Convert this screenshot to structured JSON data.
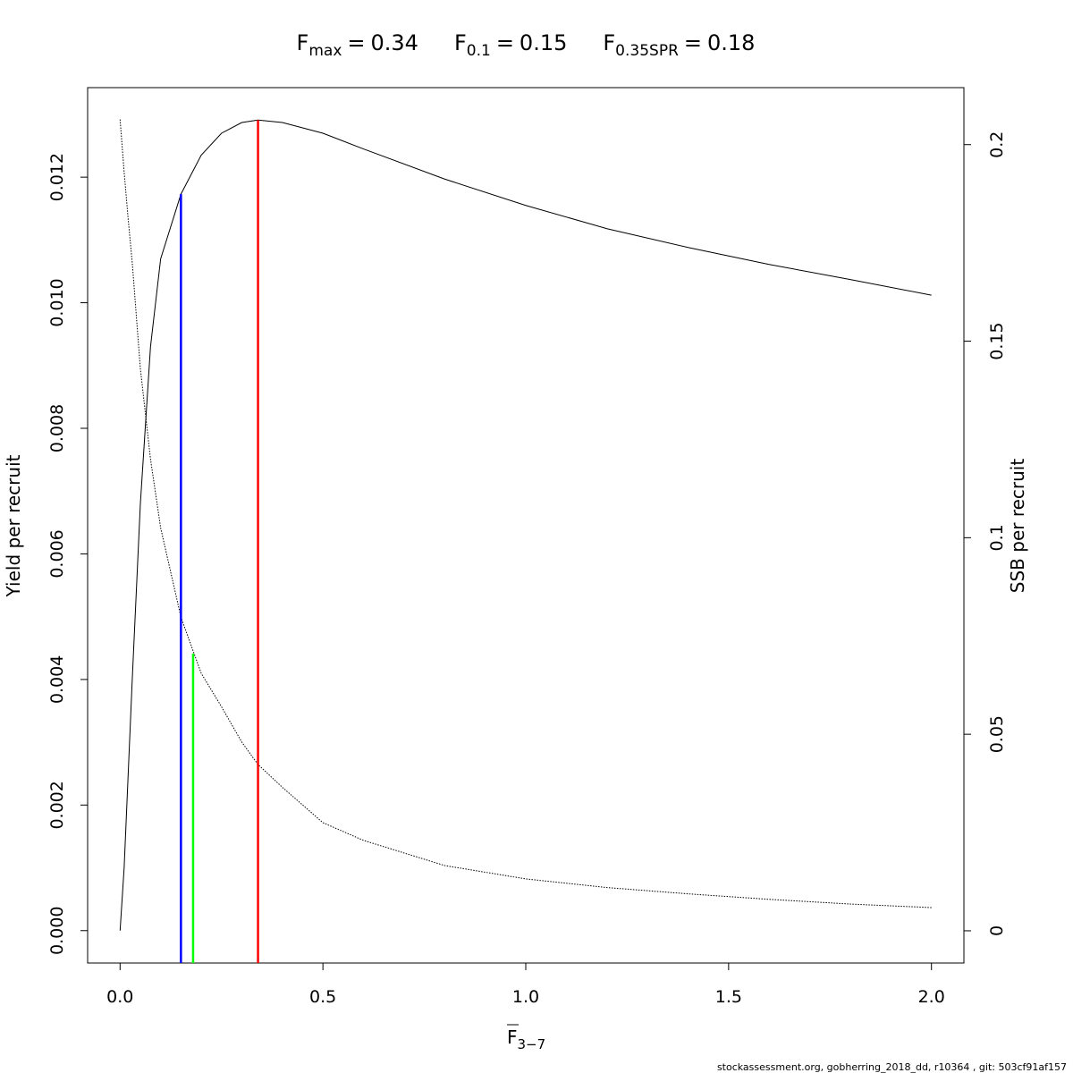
{
  "chart_data": {
    "type": "line",
    "title_parts": [
      {
        "symbol": "F",
        "subscript": "max",
        "relation": "="
      },
      {
        "symbol": "F",
        "subscript": "0.1",
        "relation": "="
      },
      {
        "symbol": "F",
        "subscript": "0.35SPR",
        "relation": "="
      }
    ],
    "x_label": {
      "symbol": "F",
      "subscript": "3−7"
    },
    "y_label": "Yield per recruit",
    "y2_label": "SSB per recruit",
    "footer": "stockassessment.org, gobherring_2018_dd, r10364 , git: 503cf91af157",
    "x": [
      0,
      0.01,
      0.02,
      0.03,
      0.05,
      0.075,
      0.1,
      0.15,
      0.2,
      0.25,
      0.3,
      0.34,
      0.4,
      0.5,
      0.6,
      0.8,
      1.0,
      1.2,
      1.4,
      1.6,
      1.8,
      2.0
    ],
    "series": [
      {
        "color": "#000000",
        "dash": "solid",
        "values": [
          0,
          0.001,
          0.0025,
          0.004,
          0.0068,
          0.0093,
          0.0107,
          0.01173,
          0.01235,
          0.0127,
          0.01287,
          0.01291,
          0.01287,
          0.0127,
          0.01245,
          0.01197,
          0.01155,
          0.01118,
          0.01088,
          0.01061,
          0.01037,
          0.01012
        ]
      },
      {
        "color": "#000000",
        "dash": "dotted",
        "axis": "y2",
        "values": [
          0.2064,
          0.193,
          0.181,
          0.17,
          0.143,
          0.12,
          0.1025,
          0.0798,
          0.0655,
          0.057,
          0.048,
          0.0423,
          0.0365,
          0.0275,
          0.023,
          0.0166,
          0.0132,
          0.011,
          0.0094,
          0.008,
          0.0068,
          0.0059
        ]
      }
    ],
    "reference_lines": [
      {
        "x": 0.34,
        "y": 0.01291,
        "color": "#ff0000"
      },
      {
        "x": 0.15,
        "y": 0.01173,
        "color": "#0000ff"
      },
      {
        "x": 0.18,
        "y": 0.0705,
        "color": "#00ff00",
        "axis": "y2"
      }
    ],
    "xlim": [
      -0.08,
      2.08
    ],
    "ylim": [
      -0.000516,
      0.013426
    ],
    "y2lim": [
      -0.0082,
      0.2145
    ],
    "xticks": [
      {
        "value": 0,
        "label": "0.0"
      },
      0.5,
      {
        "value": 1,
        "label": "1.0"
      },
      1.5,
      {
        "value": 2,
        "label": "2.0"
      }
    ],
    "yticks": [
      {
        "value": 0,
        "label": "0.000"
      },
      0.002,
      0.004,
      0.006,
      0.008,
      {
        "value": 0.01,
        "label": "0.010"
      },
      {
        "value": 0.012,
        "label": "0.012"
      }
    ],
    "y2ticks": [
      0,
      0.05,
      0.1,
      0.15,
      0.2
    ]
  }
}
